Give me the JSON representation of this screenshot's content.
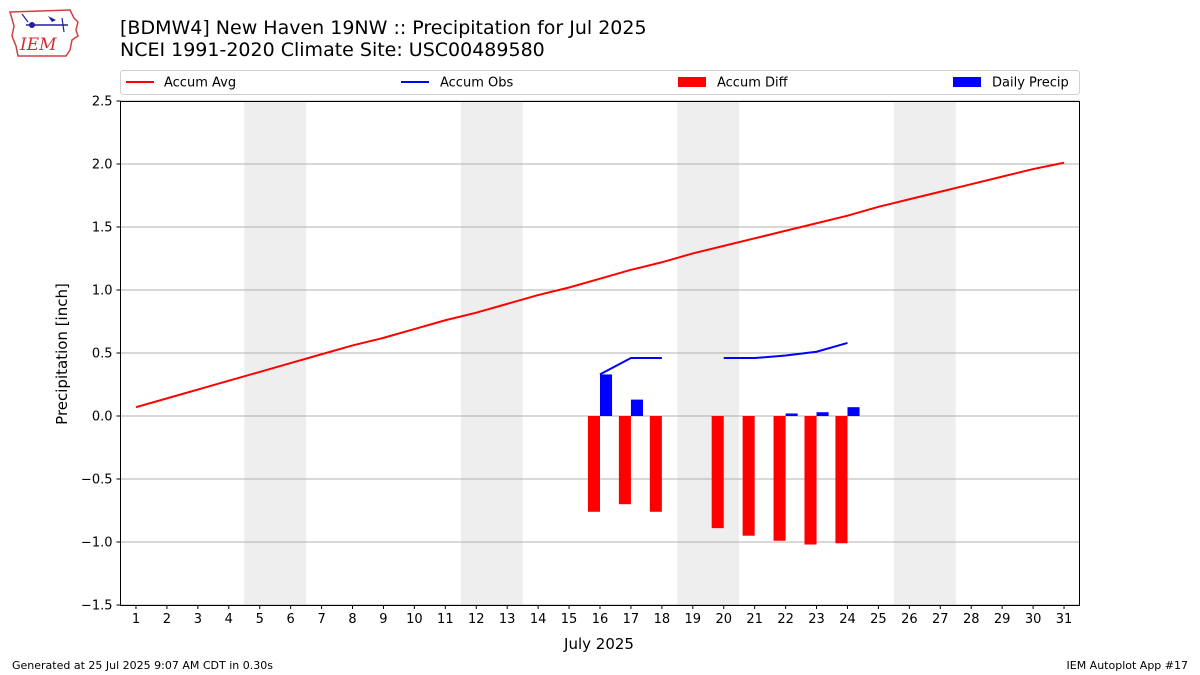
{
  "header": {
    "title": "[BDMW4] New Haven 19NW :: Precipitation for Jul 2025",
    "subtitle": "NCEI 1991-2020 Climate Site: USC00489580"
  },
  "logo": {
    "text": "IEM",
    "icon": "iem-iowa-logo"
  },
  "footer": {
    "left": "Generated at 25 Jul 2025 9:07 AM CDT in 0.30s",
    "right": "IEM Autoplot App #17"
  },
  "colors": {
    "accum_avg": "#ff0000",
    "accum_obs": "#0000ff",
    "accum_diff": "#ff0000",
    "daily_precip": "#0000ff",
    "weekend_shade": "#eeeeee",
    "grid": "#b0b0b0"
  },
  "chart_data": {
    "type": "bar",
    "title": "[BDMW4] New Haven 19NW :: Precipitation for Jul 2025",
    "xlabel": "July 2025",
    "ylabel": "Precipitation [inch]",
    "ylim": [
      -1.5,
      2.5
    ],
    "yticks": [
      -1.5,
      -1.0,
      -0.5,
      0.0,
      0.5,
      1.0,
      1.5,
      2.0,
      2.5
    ],
    "ytick_labels": [
      "−1.5",
      "−1.0",
      "−0.5",
      "0.0",
      "0.5",
      "1.0",
      "1.5",
      "2.0",
      "2.5"
    ],
    "x": [
      1,
      2,
      3,
      4,
      5,
      6,
      7,
      8,
      9,
      10,
      11,
      12,
      13,
      14,
      15,
      16,
      17,
      18,
      19,
      20,
      21,
      22,
      23,
      24,
      25,
      26,
      27,
      28,
      29,
      30,
      31
    ],
    "x_tick_labels": [
      "1",
      "2",
      "3",
      "4",
      "5",
      "6",
      "7",
      "8",
      "9",
      "10",
      "11",
      "12",
      "13",
      "14",
      "15",
      "16",
      "17",
      "18",
      "19",
      "20",
      "21",
      "22",
      "23",
      "24",
      "25",
      "26",
      "27",
      "28",
      "29",
      "30",
      "31"
    ],
    "grid": "y",
    "legend": {
      "placement": "top",
      "entries": [
        "Accum Avg",
        "Accum Obs",
        "Accum Diff",
        "Daily Precip"
      ]
    },
    "weekend_shading": [
      [
        5,
        6
      ],
      [
        12,
        13
      ],
      [
        19,
        20
      ],
      [
        26,
        27
      ]
    ],
    "series": [
      {
        "name": "Accum Avg",
        "type": "line",
        "x": [
          1,
          2,
          3,
          4,
          5,
          6,
          7,
          8,
          9,
          10,
          11,
          12,
          13,
          14,
          15,
          16,
          17,
          18,
          19,
          20,
          21,
          22,
          23,
          24,
          25,
          26,
          27,
          28,
          29,
          30,
          31
        ],
        "values": [
          0.07,
          0.14,
          0.21,
          0.28,
          0.35,
          0.42,
          0.49,
          0.56,
          0.62,
          0.69,
          0.76,
          0.82,
          0.89,
          0.96,
          1.02,
          1.09,
          1.16,
          1.22,
          1.29,
          1.35,
          1.41,
          1.47,
          1.53,
          1.59,
          1.66,
          1.72,
          1.78,
          1.84,
          1.9,
          1.96,
          2.01
        ]
      },
      {
        "name": "Accum Obs",
        "type": "line",
        "segments": [
          {
            "x": [
              16,
              17,
              18
            ],
            "values": [
              0.33,
              0.46,
              0.46
            ]
          },
          {
            "x": [
              20,
              21,
              22,
              23,
              24
            ],
            "values": [
              0.46,
              0.46,
              0.48,
              0.51,
              0.58
            ]
          }
        ]
      },
      {
        "name": "Accum Diff",
        "type": "bar",
        "x": [
          16,
          17,
          18,
          20,
          21,
          22,
          23,
          24
        ],
        "values": [
          -0.76,
          -0.7,
          -0.76,
          -0.89,
          -0.95,
          -0.99,
          -1.02,
          -1.01
        ]
      },
      {
        "name": "Daily Precip",
        "type": "bar",
        "x": [
          16,
          17,
          22,
          23,
          24
        ],
        "values": [
          0.33,
          0.13,
          0.02,
          0.03,
          0.07
        ]
      }
    ]
  }
}
